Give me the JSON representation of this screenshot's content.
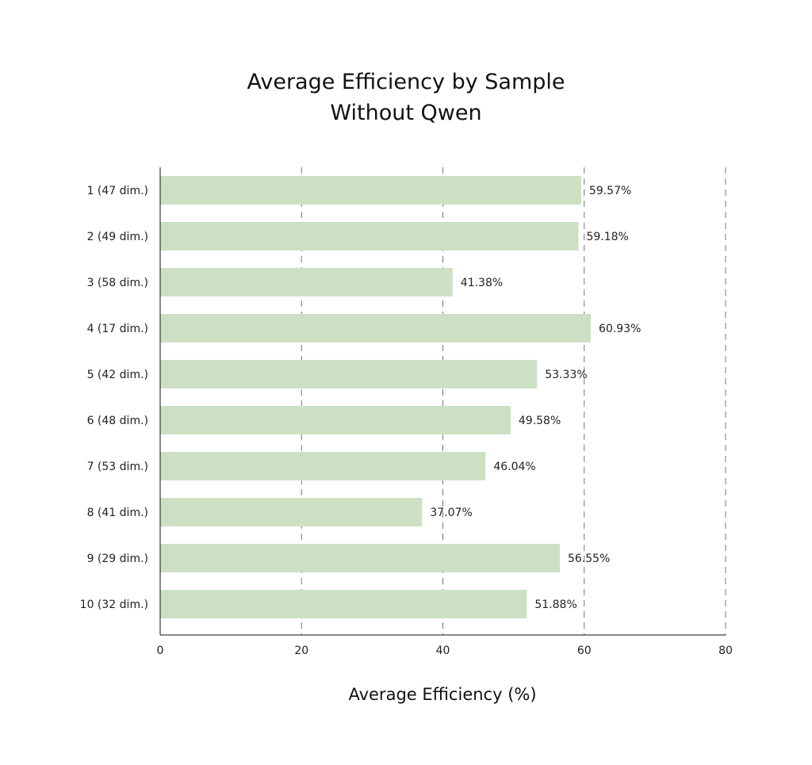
{
  "chart_data": {
    "type": "bar",
    "orientation": "horizontal",
    "title_lines": [
      "Average Efficiency by Sample",
      "Without Qwen"
    ],
    "xlabel": "Average Efficiency (%)",
    "ylabel": "",
    "xlim": [
      0,
      80
    ],
    "xticks": [
      0,
      20,
      40,
      60,
      80
    ],
    "grid": "vertical dashed",
    "bar_color": "#cde0c3",
    "categories": [
      "1 (47 dim.)",
      "2 (49 dim.)",
      "3 (58 dim.)",
      "4 (17 dim.)",
      "5 (42 dim.)",
      "6 (48 dim.)",
      "7 (53 dim.)",
      "8 (41 dim.)",
      "9 (29 dim.)",
      "10 (32 dim.)"
    ],
    "values": [
      59.57,
      59.18,
      41.38,
      60.93,
      53.33,
      49.58,
      46.04,
      37.07,
      56.55,
      51.88
    ],
    "value_labels": [
      "59.57%",
      "59.18%",
      "41.38%",
      "60.93%",
      "53.33%",
      "49.58%",
      "46.04%",
      "37.07%",
      "56.55%",
      "51.88%"
    ]
  }
}
